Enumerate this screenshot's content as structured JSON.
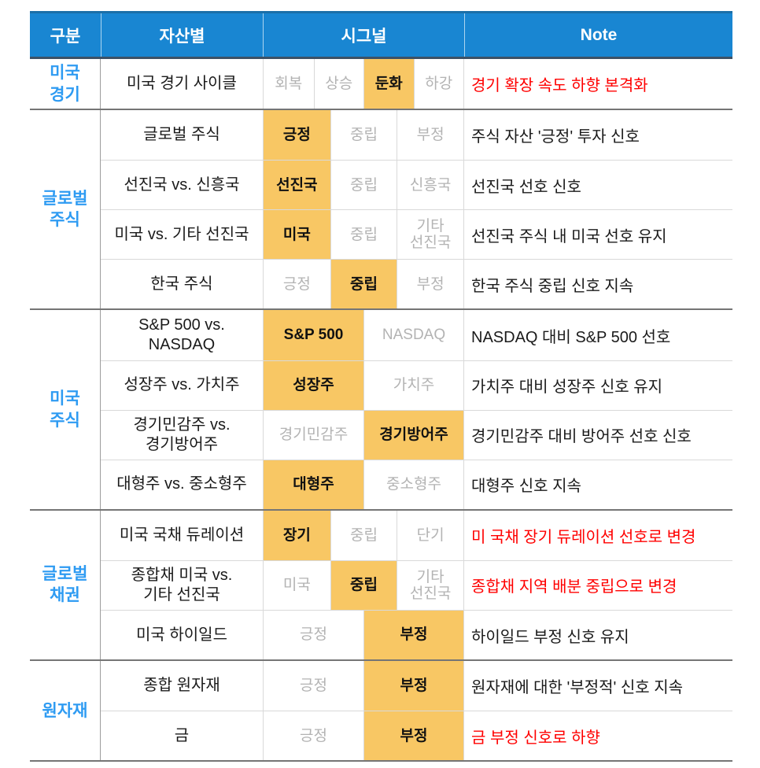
{
  "colors": {
    "header_bg": "#1986D2",
    "header_text": "#FFFFFF",
    "category_text": "#2E9BF2",
    "highlight_bg": "#F8C764",
    "muted_signal_text": "#B3B3B3",
    "note_alert_text": "#FF0000",
    "body_text": "#1A1A1A"
  },
  "table": {
    "columns": [
      "구분",
      "자산별",
      "시그널",
      "Note"
    ],
    "groups": [
      {
        "category": "미국\n경기",
        "rows": [
          {
            "asset": "미국 경기 사이클",
            "signals": [
              {
                "label": "회복",
                "selected": false
              },
              {
                "label": "상승",
                "selected": false
              },
              {
                "label": "둔화",
                "selected": true
              },
              {
                "label": "하강",
                "selected": false
              }
            ],
            "note": "경기 확장 속도 하향 본격화",
            "note_alert": true
          }
        ]
      },
      {
        "category": "글로벌\n주식",
        "rows": [
          {
            "asset": "글로벌 주식",
            "signals": [
              {
                "label": "긍정",
                "selected": true
              },
              {
                "label": "중립",
                "selected": false
              },
              {
                "label": "부정",
                "selected": false
              }
            ],
            "note": "주식 자산 '긍정' 투자 신호",
            "note_alert": false
          },
          {
            "asset": "선진국 vs. 신흥국",
            "signals": [
              {
                "label": "선진국",
                "selected": true
              },
              {
                "label": "중립",
                "selected": false
              },
              {
                "label": "신흥국",
                "selected": false
              }
            ],
            "note": "선진국 선호 신호",
            "note_alert": false
          },
          {
            "asset": "미국 vs. 기타 선진국",
            "signals": [
              {
                "label": "미국",
                "selected": true
              },
              {
                "label": "중립",
                "selected": false
              },
              {
                "label": "기타\n선진국",
                "selected": false
              }
            ],
            "note": "선진국 주식 내 미국 선호 유지",
            "note_alert": false
          },
          {
            "asset": "한국 주식",
            "signals": [
              {
                "label": "긍정",
                "selected": false
              },
              {
                "label": "중립",
                "selected": true
              },
              {
                "label": "부정",
                "selected": false
              }
            ],
            "note": "한국 주식 중립 신호 지속",
            "note_alert": false
          }
        ]
      },
      {
        "category": "미국\n주식",
        "rows": [
          {
            "asset": "S&P 500 vs.\nNASDAQ",
            "signals": [
              {
                "label": "S&P 500",
                "selected": true
              },
              {
                "label": "NASDAQ",
                "selected": false
              }
            ],
            "note": "NASDAQ 대비 S&P 500 선호",
            "note_alert": false
          },
          {
            "asset": "성장주 vs. 가치주",
            "signals": [
              {
                "label": "성장주",
                "selected": true
              },
              {
                "label": "가치주",
                "selected": false
              }
            ],
            "note": "가치주 대비 성장주 신호 유지",
            "note_alert": false
          },
          {
            "asset": "경기민감주 vs.\n경기방어주",
            "signals": [
              {
                "label": "경기민감주",
                "selected": false
              },
              {
                "label": "경기방어주",
                "selected": true
              }
            ],
            "note": "경기민감주 대비 방어주 선호 신호",
            "note_alert": false
          },
          {
            "asset": "대형주 vs. 중소형주",
            "signals": [
              {
                "label": "대형주",
                "selected": true
              },
              {
                "label": "중소형주",
                "selected": false
              }
            ],
            "note": "대형주 신호 지속",
            "note_alert": false
          }
        ]
      },
      {
        "category": "글로벌\n채권",
        "rows": [
          {
            "asset": "미국 국채 듀레이션",
            "signals": [
              {
                "label": "장기",
                "selected": true
              },
              {
                "label": "중립",
                "selected": false
              },
              {
                "label": "단기",
                "selected": false
              }
            ],
            "note": "미 국채 장기 듀레이션 선호로 변경",
            "note_alert": true
          },
          {
            "asset": "종합채 미국 vs.\n기타 선진국",
            "signals": [
              {
                "label": "미국",
                "selected": false
              },
              {
                "label": "중립",
                "selected": true
              },
              {
                "label": "기타\n선진국",
                "selected": false
              }
            ],
            "note": "종합채 지역 배분 중립으로 변경",
            "note_alert": true
          },
          {
            "asset": "미국 하이일드",
            "signals": [
              {
                "label": "긍정",
                "selected": false
              },
              {
                "label": "부정",
                "selected": true
              }
            ],
            "note": "하이일드 부정 신호 유지",
            "note_alert": false
          }
        ]
      },
      {
        "category": "원자재",
        "rows": [
          {
            "asset": "종합 원자재",
            "signals": [
              {
                "label": "긍정",
                "selected": false
              },
              {
                "label": "부정",
                "selected": true
              }
            ],
            "note": "원자재에 대한 '부정적' 신호 지속",
            "note_alert": false
          },
          {
            "asset": "금",
            "signals": [
              {
                "label": "긍정",
                "selected": false
              },
              {
                "label": "부정",
                "selected": true
              }
            ],
            "note": "금 부정 신호로 하향",
            "note_alert": true
          }
        ]
      }
    ]
  }
}
